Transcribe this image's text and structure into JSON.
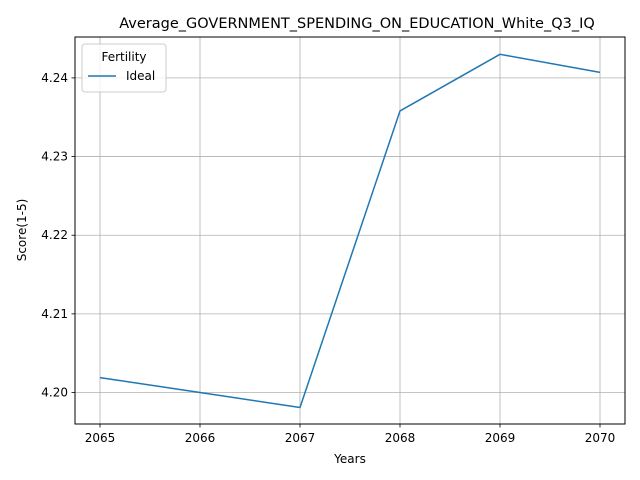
{
  "chart_data": {
    "type": "line",
    "title": "Average_GOVERNMENT_SPENDING_ON_EDUCATION_White_Q3_IQ",
    "xlabel": "Years",
    "ylabel": "Score(1-5)",
    "x": [
      2065,
      2066,
      2067,
      2068,
      2069,
      2070
    ],
    "xticks": [
      "2065",
      "2066",
      "2067",
      "2068",
      "2069",
      "2070"
    ],
    "yticks": [
      "4.20",
      "4.21",
      "4.22",
      "4.23",
      "4.24"
    ],
    "ytick_values": [
      4.2,
      4.21,
      4.22,
      4.23,
      4.24
    ],
    "xlim": [
      2064.75,
      2070.25
    ],
    "ylim": [
      4.196,
      4.2452
    ],
    "grid": true,
    "legend": {
      "title": "Fertility",
      "placement": "top-left"
    },
    "series": [
      {
        "name": "Ideal",
        "color": "#1f77b4",
        "values": [
          4.2019,
          4.2,
          4.1981,
          4.2358,
          4.243,
          4.2407
        ]
      }
    ]
  }
}
